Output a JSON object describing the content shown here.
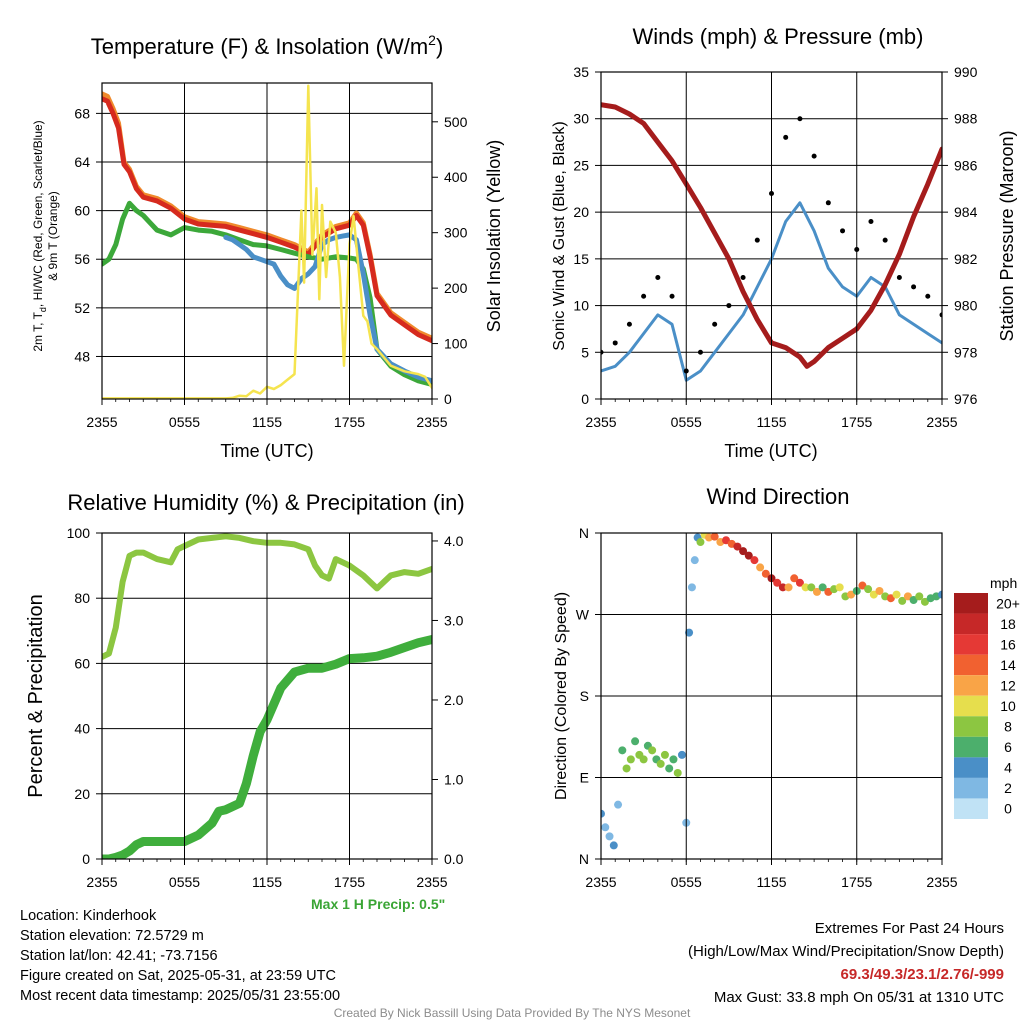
{
  "panels": {
    "temp": {
      "title_main": "Temperature (F) & Insolation (W/m",
      "title_sup": "2",
      "title_end": ")",
      "ylabel_line1": "2m T, T",
      "ylabel_sub": "d",
      "ylabel_line1_end": ", HI/WC (Red, Green, Scarlet/Blue)",
      "ylabel_line2": "& 9m T (Orange)",
      "y2label": "Solar Insolation (Yellow)",
      "xlabel": "Time (UTC)"
    },
    "wind": {
      "title": "Winds (mph) & Pressure (mb)",
      "ylabel": "Sonic Wind & Gust (Blue, Black)",
      "y2label": "Station Pressure (Maroon)",
      "xlabel": "Time (UTC)"
    },
    "rh": {
      "title": "Relative Humidity (%) & Precipitation (in)",
      "ylabel": "Percent & Precipitation",
      "max_precip": "Max 1 H Precip: 0.5\""
    },
    "dir": {
      "title": "Wind Direction",
      "ylabel": "Direction (Colored By Speed)",
      "colorbar_title": "mph",
      "colorbar_labels": [
        "20+",
        "18",
        "16",
        "14",
        "12",
        "10",
        "8",
        "6",
        "4",
        "2",
        "0"
      ],
      "colorbar_colors": [
        "#a51c1c",
        "#c62828",
        "#e53935",
        "#f16130",
        "#f9a447",
        "#e6de4d",
        "#8cc641",
        "#4caf6c",
        "#4a8fc7",
        "#7fb8e3",
        "#c0e2f5"
      ]
    }
  },
  "info": {
    "location": "Location: Kinderhook",
    "elevation": "Station elevation: 72.5729 m",
    "latlon": "Station lat/lon: 42.41; -73.7156",
    "created": "Figure created on Sat, 2025-05-31, at 23:59 UTC",
    "recent": "Most recent data timestamp: 2025/05/31 23:55:00",
    "extremes_title": "Extremes For Past 24 Hours",
    "extremes_legend": "(High/Low/Max Wind/Precipitation/Snow Depth)",
    "extremes_values": "69.3/49.3/23.1/2.76/-999",
    "max_gust": "Max Gust: 33.8 mph On 05/31 at 1310 UTC",
    "credit": "Created By Nick Bassill Using Data Provided By The NYS Mesonet"
  },
  "chart_data": [
    {
      "type": "line",
      "name": "temperature-insolation",
      "x_ticks": [
        "2355",
        "0555",
        "1155",
        "1755",
        "2355"
      ],
      "x_hours": [
        0,
        6,
        12,
        18,
        24
      ],
      "ylim": [
        44.5,
        70.5
      ],
      "y_ticks": [
        48,
        52,
        56,
        60,
        64,
        68
      ],
      "y2lim": [
        0,
        570
      ],
      "y2_ticks": [
        0,
        100,
        200,
        300,
        400,
        500
      ],
      "series": [
        {
          "key": "t9m",
          "color": "#f08a2c",
          "axis": "y",
          "x": [
            0,
            0.4,
            0.8,
            1.2,
            1.6,
            2.0,
            2.5,
            3.0,
            4.0,
            5.0,
            6.0,
            7.0,
            8.0,
            9.0,
            10.0,
            11.0,
            12.0,
            13.0,
            14.0,
            15.0,
            16.0,
            17.0,
            18.0,
            18.5,
            19.0,
            19.5,
            20.0,
            21.0,
            22.0,
            23.0,
            24.0
          ],
          "y": [
            69.6,
            69.4,
            68.4,
            67.2,
            64.0,
            63.4,
            62.0,
            61.3,
            61.0,
            60.4,
            59.5,
            59.1,
            59.0,
            58.9,
            58.6,
            58.3,
            58.0,
            57.6,
            57.2,
            56.6,
            58.0,
            58.7,
            59.0,
            59.8,
            59.0,
            56.4,
            53.2,
            51.6,
            50.8,
            50.0,
            49.5
          ]
        },
        {
          "key": "t2m",
          "color": "#d62a1e",
          "axis": "y",
          "x": [
            0,
            0.4,
            0.8,
            1.2,
            1.6,
            2.0,
            2.5,
            3.0,
            4.0,
            5.0,
            6.0,
            7.0,
            8.0,
            9.0,
            10.0,
            11.0,
            12.0,
            13.0,
            14.0,
            15.0,
            16.0,
            17.0,
            18.0,
            18.5,
            19.0,
            19.5,
            20.0,
            21.0,
            22.0,
            23.0,
            24.0
          ],
          "y": [
            69.2,
            69.0,
            68.0,
            66.8,
            63.8,
            63.2,
            61.8,
            61.1,
            60.8,
            60.2,
            59.3,
            58.9,
            58.8,
            58.7,
            58.4,
            58.1,
            57.8,
            57.4,
            57.0,
            56.4,
            57.8,
            58.5,
            58.8,
            59.6,
            58.8,
            56.2,
            53.0,
            51.4,
            50.6,
            49.8,
            49.3
          ]
        },
        {
          "key": "td",
          "color": "#3ca83a",
          "axis": "y",
          "x": [
            0,
            0.5,
            1.0,
            1.5,
            2.0,
            2.5,
            3.0,
            3.5,
            4.0,
            5.0,
            6.0,
            7.0,
            8.0,
            9.0,
            10.0,
            11.0,
            12.0,
            13.0,
            14.0,
            15.0,
            16.0,
            17.0,
            18.0,
            18.5,
            19.0,
            19.5,
            20.0,
            21.0,
            22.0,
            23.0,
            24.0
          ],
          "y": [
            55.6,
            56.0,
            57.2,
            59.3,
            60.6,
            60.0,
            59.6,
            59.0,
            58.4,
            58.0,
            58.6,
            58.4,
            58.3,
            58.0,
            57.6,
            57.2,
            57.1,
            56.8,
            56.5,
            56.2,
            56.0,
            56.2,
            56.1,
            56.0,
            55.2,
            52.8,
            48.6,
            47.2,
            46.5,
            46.0,
            45.7
          ]
        },
        {
          "key": "hiwc",
          "color": "#4a8fc7",
          "axis": "y",
          "x": [
            9.0,
            9.5,
            10.0,
            10.5,
            11.0,
            11.5,
            12.0,
            12.5,
            13.0,
            13.5,
            14.0,
            14.5,
            15.0,
            15.5,
            16.0,
            16.5,
            17.0,
            17.5,
            18.0,
            18.5,
            19.0,
            19.5,
            20.0,
            21.0,
            22.0,
            23.0,
            24.0
          ],
          "y": [
            57.8,
            57.6,
            57.2,
            56.8,
            56.2,
            56.0,
            55.8,
            55.6,
            54.6,
            53.9,
            53.6,
            54.4,
            54.8,
            55.4,
            57.2,
            57.6,
            57.8,
            57.9,
            58.0,
            57.6,
            54.8,
            51.4,
            48.6,
            47.4,
            46.8,
            46.3,
            46.0
          ]
        },
        {
          "key": "insol",
          "color": "#f5e44f",
          "axis": "y2",
          "x": [
            0,
            9.0,
            9.5,
            10.0,
            10.5,
            11.0,
            11.5,
            12.0,
            12.5,
            13.0,
            13.5,
            14.0,
            14.5,
            14.7,
            15.0,
            15.3,
            15.6,
            15.8,
            16.0,
            16.3,
            16.6,
            17.0,
            17.3,
            17.6,
            18.0,
            18.3,
            18.6,
            19.0,
            19.3,
            19.6,
            20.0,
            21.0,
            22.0,
            23.0,
            23.5,
            24.0
          ],
          "y": [
            1,
            1,
            2,
            6,
            5,
            15,
            10,
            22,
            18,
            25,
            35,
            45,
            340,
            210,
            565,
            260,
            380,
            180,
            350,
            220,
            320,
            300,
            220,
            60,
            280,
            330,
            250,
            150,
            140,
            100,
            90,
            60,
            50,
            45,
            40,
            20
          ]
        }
      ]
    },
    {
      "type": "line",
      "name": "winds-pressure",
      "x_ticks": [
        "2355",
        "0555",
        "1155",
        "1755",
        "2355"
      ],
      "x_hours": [
        0,
        6,
        12,
        18,
        24
      ],
      "ylim": [
        0,
        35
      ],
      "y_ticks": [
        0,
        5,
        10,
        15,
        20,
        25,
        30,
        35
      ],
      "y2lim": [
        976,
        990
      ],
      "y2_ticks": [
        976,
        978,
        980,
        982,
        984,
        986,
        988,
        990
      ],
      "series": [
        {
          "key": "sonic_wind",
          "color": "#4a8fc7",
          "axis": "y",
          "x": [
            0,
            1,
            2,
            3,
            4,
            5,
            6,
            7,
            8,
            9,
            10,
            11,
            12,
            13,
            14,
            15,
            16,
            17,
            18,
            19,
            20,
            21,
            22,
            23,
            24
          ],
          "y": [
            3,
            3.5,
            5,
            7,
            9,
            8,
            2,
            3,
            5,
            7,
            9,
            12,
            15,
            19,
            21,
            18,
            14,
            12,
            11,
            13,
            12,
            9,
            8,
            7,
            6
          ]
        },
        {
          "key": "gust",
          "color": "#000000",
          "axis": "y",
          "style": "dots",
          "x": [
            0,
            1,
            2,
            3,
            4,
            5,
            6,
            7,
            8,
            9,
            10,
            11,
            12,
            13,
            14,
            15,
            16,
            17,
            18,
            19,
            20,
            21,
            22,
            23,
            24
          ],
          "y": [
            5,
            6,
            8,
            11,
            13,
            11,
            3,
            5,
            8,
            10,
            13,
            17,
            22,
            28,
            30,
            26,
            21,
            18,
            16,
            19,
            17,
            13,
            12,
            11,
            9
          ]
        },
        {
          "key": "pressure",
          "color": "#a51c1c",
          "axis": "y2",
          "x": [
            0,
            1,
            2,
            3,
            4,
            5,
            6,
            7,
            8,
            9,
            10,
            11,
            12,
            13,
            14,
            14.5,
            15,
            16,
            17,
            18,
            19,
            20,
            21,
            22,
            23,
            24
          ],
          "y": [
            988.6,
            988.5,
            988.2,
            987.8,
            987.0,
            986.2,
            985.2,
            984.2,
            983.1,
            982.0,
            980.6,
            979.4,
            978.4,
            978.2,
            977.8,
            977.4,
            977.6,
            978.2,
            978.6,
            979.0,
            979.8,
            980.9,
            982.2,
            983.8,
            985.2,
            986.7
          ]
        }
      ]
    },
    {
      "type": "line",
      "name": "humidity-precipitation",
      "x_ticks": [
        "2355",
        "0555",
        "1155",
        "1755",
        "2355"
      ],
      "x_hours": [
        0,
        6,
        12,
        18,
        24
      ],
      "ylim": [
        0,
        100
      ],
      "y_ticks": [
        0,
        20,
        40,
        60,
        80,
        100
      ],
      "y2lim": [
        0,
        4.1
      ],
      "y2_ticks": [
        0.0,
        1.0,
        2.0,
        3.0,
        4.0
      ],
      "series": [
        {
          "key": "rh",
          "color": "#8cc641",
          "axis": "y",
          "x": [
            0,
            0.5,
            1.0,
            1.5,
            2.0,
            2.5,
            3.0,
            4.0,
            5.0,
            5.5,
            6.0,
            7.0,
            8.0,
            9.0,
            10.0,
            11.0,
            12.0,
            13.0,
            14.0,
            15.0,
            15.5,
            16.0,
            16.5,
            17.0,
            18.0,
            19.0,
            20.0,
            21.0,
            22.0,
            23.0,
            24.0
          ],
          "y": [
            62,
            63,
            71,
            85,
            93,
            94,
            94,
            92,
            91,
            95,
            96,
            98,
            98.5,
            99,
            98.5,
            97.5,
            97,
            97,
            96.5,
            95,
            90,
            87,
            86,
            92,
            90,
            87,
            83,
            87,
            88,
            87.5,
            89
          ]
        },
        {
          "key": "precip",
          "color": "#3fae3c",
          "axis": "y2",
          "x": [
            0,
            0.5,
            1.0,
            1.5,
            2.0,
            2.5,
            3.0,
            4.0,
            5.0,
            6.0,
            7.0,
            8.0,
            8.5,
            9.0,
            10.0,
            10.5,
            11.0,
            11.5,
            12.0,
            13.0,
            14.0,
            15.0,
            16.0,
            17.0,
            18.0,
            19.0,
            20.0,
            21.0,
            22.0,
            23.0,
            24.0
          ],
          "y": [
            0,
            0,
            0.02,
            0.05,
            0.1,
            0.18,
            0.22,
            0.22,
            0.22,
            0.22,
            0.3,
            0.45,
            0.6,
            0.62,
            0.7,
            0.95,
            1.3,
            1.6,
            1.75,
            2.15,
            2.35,
            2.4,
            2.4,
            2.45,
            2.52,
            2.53,
            2.55,
            2.6,
            2.66,
            2.72,
            2.76
          ]
        }
      ]
    },
    {
      "type": "scatter",
      "name": "wind-direction",
      "x_ticks": [
        "2355",
        "0555",
        "1155",
        "1755",
        "2355"
      ],
      "x_hours": [
        0,
        6,
        12,
        18,
        24
      ],
      "y_ticks": [
        "N",
        "W",
        "S",
        "E",
        "N"
      ],
      "y_degrees": [
        360,
        270,
        180,
        90,
        0
      ],
      "x": [
        0,
        0.3,
        0.6,
        0.9,
        1.2,
        1.5,
        1.8,
        2.1,
        2.4,
        2.7,
        3.0,
        3.3,
        3.6,
        3.9,
        4.2,
        4.5,
        4.8,
        5.1,
        5.4,
        5.7,
        6.0,
        6.2,
        6.4,
        6.6,
        6.8,
        7.0,
        7.3,
        7.6,
        8.0,
        8.4,
        8.8,
        9.2,
        9.6,
        10.0,
        10.4,
        10.8,
        11.2,
        11.6,
        12.0,
        12.4,
        12.8,
        13.2,
        13.6,
        14.0,
        14.4,
        14.8,
        15.2,
        15.6,
        16.0,
        16.4,
        16.8,
        17.2,
        17.6,
        18.0,
        18.4,
        18.8,
        19.2,
        19.6,
        20.0,
        20.4,
        20.8,
        21.2,
        21.6,
        22.0,
        22.4,
        22.8,
        23.2,
        23.6,
        24.0
      ],
      "y": [
        50,
        35,
        25,
        15,
        60,
        120,
        100,
        110,
        130,
        115,
        110,
        125,
        120,
        110,
        105,
        115,
        100,
        110,
        95,
        115,
        40,
        250,
        300,
        330,
        355,
        350,
        358,
        355,
        356,
        350,
        352,
        348,
        345,
        340,
        335,
        330,
        322,
        315,
        310,
        305,
        300,
        300,
        310,
        305,
        300,
        300,
        295,
        300,
        295,
        298,
        300,
        290,
        292,
        296,
        302,
        298,
        292,
        296,
        290,
        288,
        292,
        285,
        290,
        286,
        290,
        284,
        288,
        290,
        292
      ],
      "speed": [
        3,
        2,
        1,
        4,
        2,
        5,
        7,
        8,
        6,
        7,
        8,
        6,
        7,
        5,
        8,
        7,
        6,
        5,
        8,
        4,
        2,
        3,
        2,
        1,
        4,
        8,
        10,
        12,
        14,
        12,
        16,
        14,
        18,
        20,
        19,
        16,
        12,
        14,
        20,
        16,
        18,
        12,
        14,
        16,
        10,
        8,
        12,
        6,
        14,
        8,
        10,
        7,
        12,
        6,
        14,
        8,
        10,
        12,
        7,
        14,
        10,
        8,
        12,
        6,
        8,
        7,
        5,
        6,
        4
      ]
    }
  ]
}
